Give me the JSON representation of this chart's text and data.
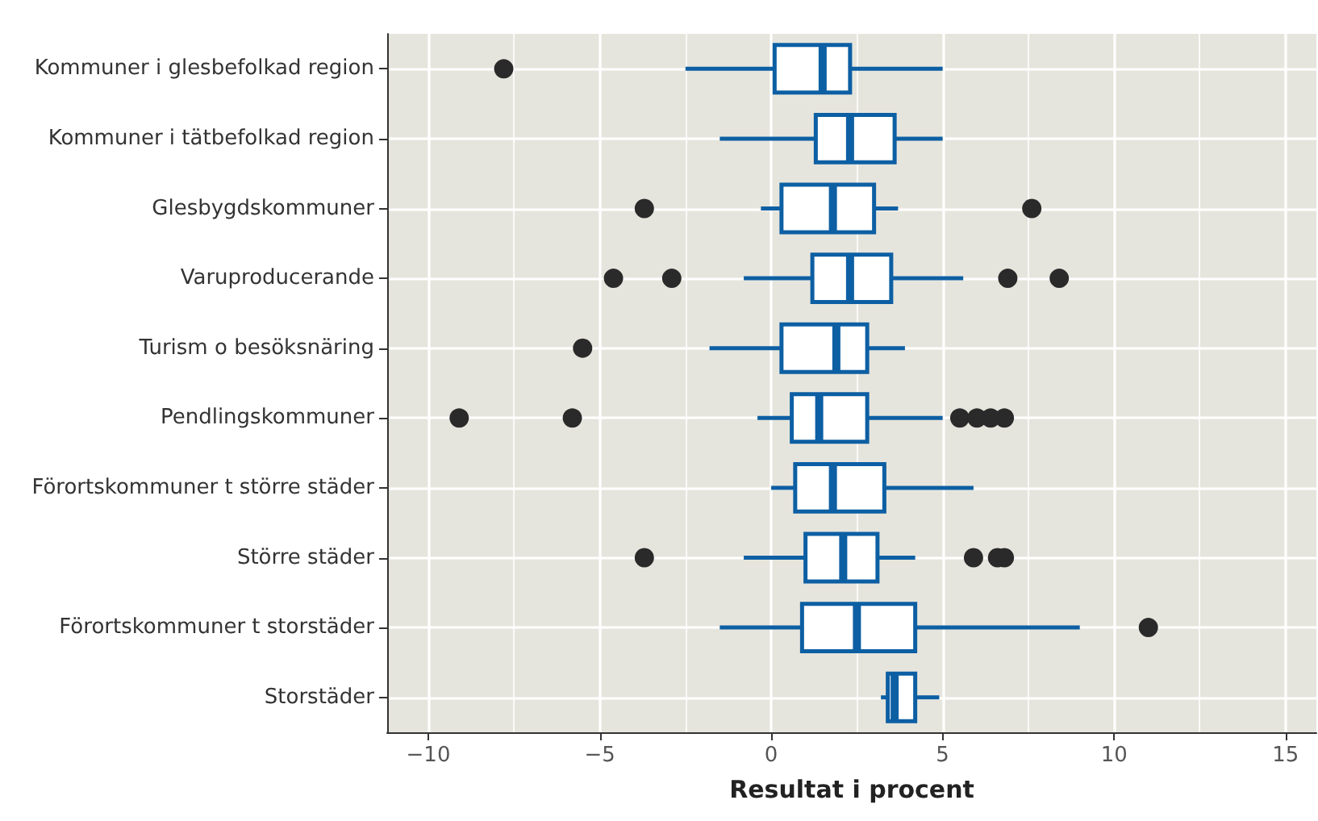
{
  "chart_data": {
    "type": "box",
    "orientation": "horizontal",
    "xlabel": "Resultat i procent",
    "categories": [
      "Kommuner i glesbefolkad region",
      "Kommuner i tätbefolkad region",
      "Glesbygdskommuner",
      "Varuproducerande",
      "Turism o besöksnäring",
      "Pendlingskommuner",
      "Förortskommuner t större städer",
      "Större städer",
      "Förortskommuner t storstäder",
      "Storstäder"
    ],
    "series": [
      {
        "color": "#0d5fa3",
        "boxes": [
          {
            "low": -2.5,
            "q1": 0.1,
            "median": 1.5,
            "q3": 2.3,
            "high": 5.0,
            "outliers": [
              -7.8
            ]
          },
          {
            "low": -1.5,
            "q1": 1.3,
            "median": 2.3,
            "q3": 3.6,
            "high": 5.0
          },
          {
            "low": -0.3,
            "q1": 0.3,
            "median": 1.8,
            "q3": 3.0,
            "high": 3.7,
            "outliers": [
              -3.7,
              7.6
            ]
          },
          {
            "low": -0.8,
            "q1": 1.2,
            "median": 2.3,
            "q3": 3.5,
            "high": 5.6,
            "outliers": [
              -4.6,
              -2.9,
              6.9,
              8.4
            ]
          },
          {
            "low": -1.8,
            "q1": 0.3,
            "median": 1.9,
            "q3": 2.8,
            "high": 3.9,
            "outliers": [
              -5.5
            ]
          },
          {
            "low": -0.4,
            "q1": 0.6,
            "median": 1.4,
            "q3": 2.8,
            "high": 5.0,
            "outliers": [
              -9.1,
              -5.8,
              5.5,
              6.0,
              6.4,
              6.8
            ]
          },
          {
            "low": 0.0,
            "q1": 0.7,
            "median": 1.8,
            "q3": 3.3,
            "high": 5.9
          },
          {
            "low": -0.8,
            "q1": 1.0,
            "median": 2.1,
            "q3": 3.1,
            "high": 4.2,
            "outliers": [
              -3.7,
              5.9,
              6.6,
              6.8
            ]
          },
          {
            "low": -1.5,
            "q1": 0.9,
            "median": 2.5,
            "q3": 4.2,
            "high": 9.0,
            "outliers": [
              11.0
            ]
          },
          {
            "low": 3.2,
            "q1": 3.4,
            "median": 3.6,
            "q3": 4.2,
            "high": 4.9
          }
        ]
      }
    ],
    "xlim": [
      -11.2,
      15.9
    ],
    "xticks": [
      {
        "value": -10,
        "label": "−10"
      },
      {
        "value": -5,
        "label": "−5"
      },
      0,
      5,
      10,
      15
    ],
    "grid": true
  }
}
